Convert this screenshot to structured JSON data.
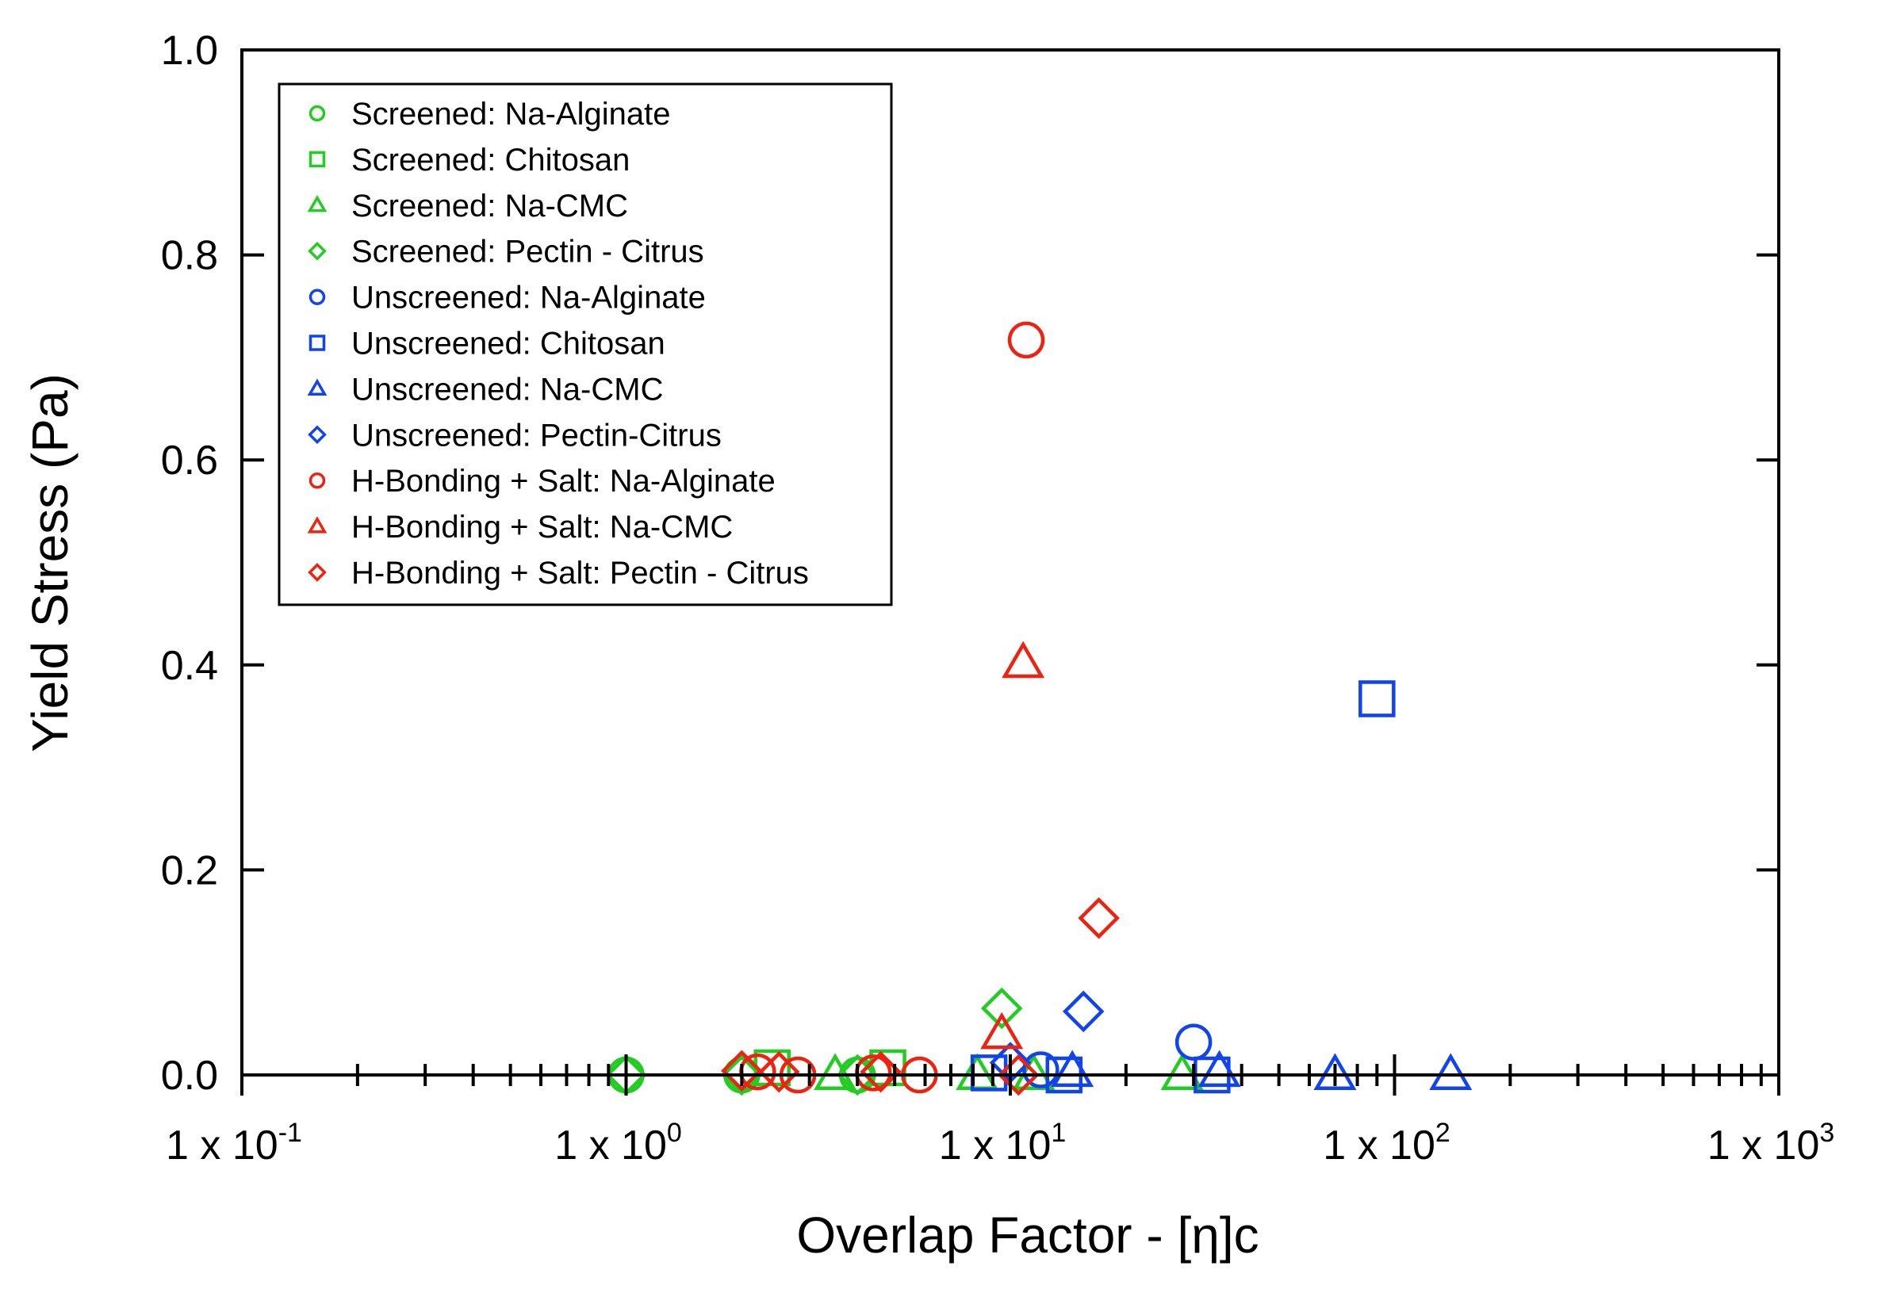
{
  "chart_data": {
    "type": "scatter",
    "title": "",
    "xlabel": "Overlap Factor - [η]c",
    "ylabel": "Yield Stress (Pa)",
    "xscale": "log",
    "xlim": [
      0.1,
      1000
    ],
    "ylim": [
      0.0,
      1.0
    ],
    "legend_position": "top-left",
    "grid": false,
    "x_ticks": [
      {
        "value": 0.1,
        "base": "1 x 10",
        "exp": "-1"
      },
      {
        "value": 1,
        "base": "1 x 10",
        "exp": "0"
      },
      {
        "value": 10,
        "base": "1 x 10",
        "exp": "1"
      },
      {
        "value": 100,
        "base": "1 x 10",
        "exp": "2"
      },
      {
        "value": 1000,
        "base": "1 x 10",
        "exp": "3"
      }
    ],
    "y_ticks": [
      {
        "value": 0.0,
        "label": "0.0"
      },
      {
        "value": 0.2,
        "label": "0.2"
      },
      {
        "value": 0.4,
        "label": "0.4"
      },
      {
        "value": 0.6,
        "label": "0.6"
      },
      {
        "value": 0.8,
        "label": "0.8"
      },
      {
        "value": 1.0,
        "label": "1.0"
      }
    ],
    "series": [
      {
        "name": "Screened: Na-Alginate",
        "color": "#22cc22",
        "marker": "circle",
        "x": [
          1.0,
          2.0,
          4.0
        ],
        "y": [
          0.0,
          0.0,
          0.0
        ]
      },
      {
        "name": "Screened: Chitosan",
        "color": "#22cc22",
        "marker": "square",
        "x": [
          2.4,
          4.8
        ],
        "y": [
          0.007,
          0.007
        ]
      },
      {
        "name": "Screened: Na-CMC",
        "color": "#22cc22",
        "marker": "triangle",
        "x": [
          3.5,
          8.2,
          11.5,
          28
        ],
        "y": [
          0.0,
          0.0,
          0.0,
          0.0
        ]
      },
      {
        "name": "Screened: Pectin - Citrus",
        "color": "#22cc22",
        "marker": "diamond",
        "x": [
          1.0,
          2.0,
          4.0,
          9.5
        ],
        "y": [
          0.0,
          0.0,
          0.0,
          0.065
        ]
      },
      {
        "name": "Unscreened: Na-Alginate",
        "color": "#1144ee",
        "marker": "circle",
        "x": [
          12.0,
          30.0
        ],
        "y": [
          0.005,
          0.032
        ]
      },
      {
        "name": "Unscreened: Chitosan",
        "color": "#1144ee",
        "marker": "square",
        "x": [
          8.8,
          13.8,
          33.5,
          90
        ],
        "y": [
          0.002,
          0.0,
          0.0,
          0.367
        ]
      },
      {
        "name": "Unscreened: Na-CMC",
        "color": "#1144ee",
        "marker": "triangle",
        "x": [
          14.5,
          35,
          70,
          140
        ],
        "y": [
          0.003,
          0.003,
          0.0,
          0.0
        ]
      },
      {
        "name": "Unscreened: Pectin-Citrus",
        "color": "#1144ee",
        "marker": "diamond",
        "x": [
          10.0,
          15.5
        ],
        "y": [
          0.012,
          0.062
        ]
      },
      {
        "name": "H-Bonding + Salt: Na-Alginate",
        "color": "#ee2211",
        "marker": "circle",
        "x": [
          2.2,
          2.8,
          4.4,
          5.8,
          11.0
        ],
        "y": [
          0.003,
          0.0,
          0.002,
          0.0,
          0.717
        ]
      },
      {
        "name": "H-Bonding + Salt: Na-CMC",
        "color": "#ee2211",
        "marker": "triangle",
        "x": [
          9.5,
          10.8
        ],
        "y": [
          0.04,
          0.402
        ]
      },
      {
        "name": "H-Bonding + Salt: Pectin - Citrus",
        "color": "#ee2211",
        "marker": "diamond",
        "x": [
          2.0,
          2.5,
          4.6,
          10.5,
          17.0
        ],
        "y": [
          0.004,
          0.003,
          0.003,
          0.0,
          0.153
        ]
      }
    ]
  }
}
